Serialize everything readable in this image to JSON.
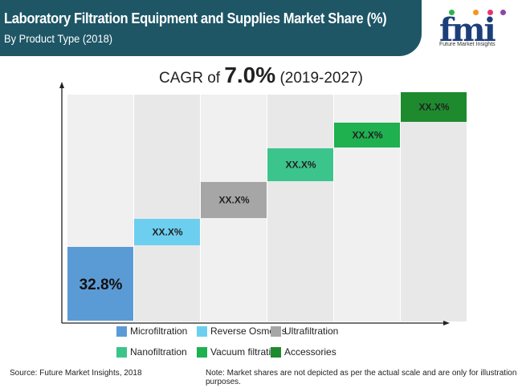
{
  "header": {
    "title": "Laboratory Filtration Equipment and Supplies Market Share (%)",
    "subtitle": "By Product Type (2018)"
  },
  "logo": {
    "text": "fmi",
    "tagline": "Future Market Insights"
  },
  "cagr": {
    "prefix": "CAGR of",
    "value": "7.0%",
    "period": "(2019-2027)"
  },
  "chart_data": {
    "type": "bar",
    "categories": [
      "Microfiltration",
      "Reverse Osmosis",
      "Ultrafiltration",
      "Nanofiltration",
      "Vacuum filtration",
      "Accessories"
    ],
    "labels": [
      "32.8%",
      "XX.X%",
      "XX.X%",
      "XX.X%",
      "XX.X%",
      "XX.X%"
    ],
    "values": [
      32.8,
      null,
      null,
      null,
      null,
      null
    ],
    "colors": [
      "#5b9bd5",
      "#6dcff0",
      "#a6a6a6",
      "#3cc48d",
      "#1fb050",
      "#1e8a2e"
    ],
    "legend_placement": "bottom",
    "grid": false
  },
  "footer": {
    "source": "Source: Future Market Insights, 2018",
    "note": "Note: Market shares are not depicted as per the actual scale and are only for illustration purposes."
  }
}
